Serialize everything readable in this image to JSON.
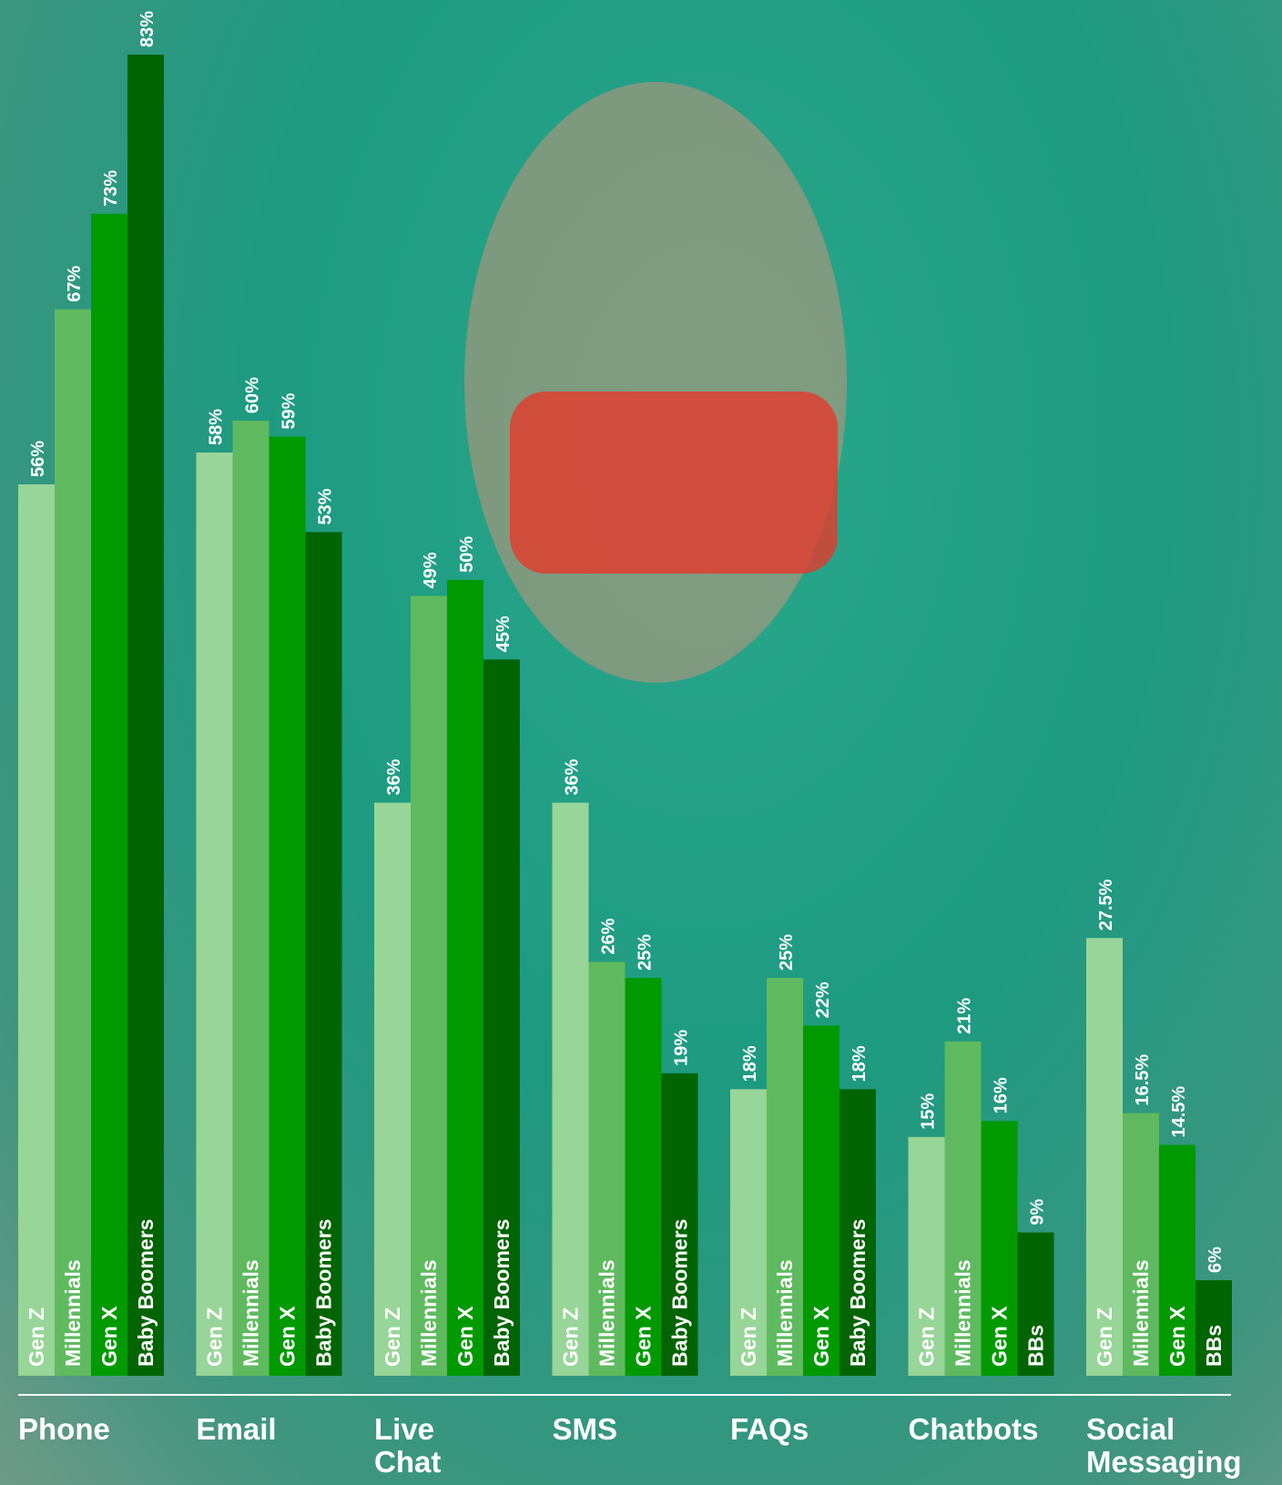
{
  "chart_data": {
    "type": "grouped-bar",
    "colors": [
      "#98d598",
      "#5fba5f",
      "#009a00",
      "#006400"
    ],
    "groups": [
      {
        "name": "Phone",
        "bar_labels": [
          "Gen Z",
          "Millennials",
          "Gen X",
          "Baby Boomers"
        ],
        "values": [
          56,
          67,
          73,
          83
        ],
        "value_labels": [
          "56%",
          "67%",
          "73%",
          "83%"
        ]
      },
      {
        "name": "Email",
        "bar_labels": [
          "Gen Z",
          "Millennials",
          "Gen X",
          "Baby Boomers"
        ],
        "values": [
          58,
          60,
          59,
          53
        ],
        "value_labels": [
          "58%",
          "60%",
          "59%",
          "53%"
        ]
      },
      {
        "name": "Live Chat",
        "bar_labels": [
          "Gen Z",
          "Millennials",
          "Gen X",
          "Baby Boomers"
        ],
        "values": [
          36,
          49,
          50,
          45
        ],
        "value_labels": [
          "36%",
          "49%",
          "50%",
          "45%"
        ]
      },
      {
        "name": "SMS",
        "bar_labels": [
          "Gen Z",
          "Millennials",
          "Gen X",
          "Baby Boomers"
        ],
        "values": [
          36,
          26,
          25,
          19
        ],
        "value_labels": [
          "36%",
          "26%",
          "25%",
          "19%"
        ]
      },
      {
        "name": "FAQs",
        "bar_labels": [
          "Gen Z",
          "Millennials",
          "Gen X",
          "Baby Boomers"
        ],
        "values": [
          18,
          25,
          22,
          18
        ],
        "value_labels": [
          "18%",
          "25%",
          "22%",
          "18%"
        ]
      },
      {
        "name": "Chatbots",
        "bar_labels": [
          "Gen Z",
          "Millennials",
          "Gen X",
          "BBs"
        ],
        "values": [
          15,
          21,
          16,
          9
        ],
        "value_labels": [
          "15%",
          "21%",
          "16%",
          "9%"
        ]
      },
      {
        "name": "Social Messaging",
        "bar_labels": [
          "Gen Z",
          "Millennials",
          "Gen X",
          "BBs"
        ],
        "values": [
          27.5,
          16.5,
          14.5,
          6
        ],
        "value_labels": [
          "27.5%",
          "16.5%",
          "14.5%",
          "6%"
        ]
      }
    ]
  }
}
